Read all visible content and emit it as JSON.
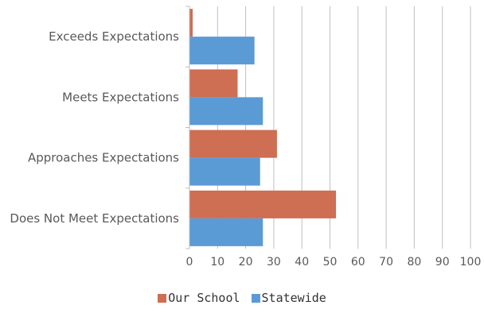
{
  "chart_data": {
    "type": "bar",
    "orientation": "horizontal",
    "categories": [
      "Exceeds Expectations",
      "Meets Expectations",
      "Approaches Expectations",
      "Does Not Meet Expectations"
    ],
    "series": [
      {
        "name": "Our School",
        "color": "#CE6E53",
        "values": [
          1,
          17,
          31,
          52
        ]
      },
      {
        "name": "Statewide",
        "color": "#5B9BD5",
        "values": [
          23,
          26,
          25,
          26
        ]
      }
    ],
    "xlim": [
      0,
      100
    ],
    "xticks": [
      "0",
      "10",
      "20",
      "30",
      "40",
      "50",
      "60",
      "70",
      "80",
      "90",
      "100"
    ],
    "grid": "vertical",
    "legend_position": "bottom"
  }
}
